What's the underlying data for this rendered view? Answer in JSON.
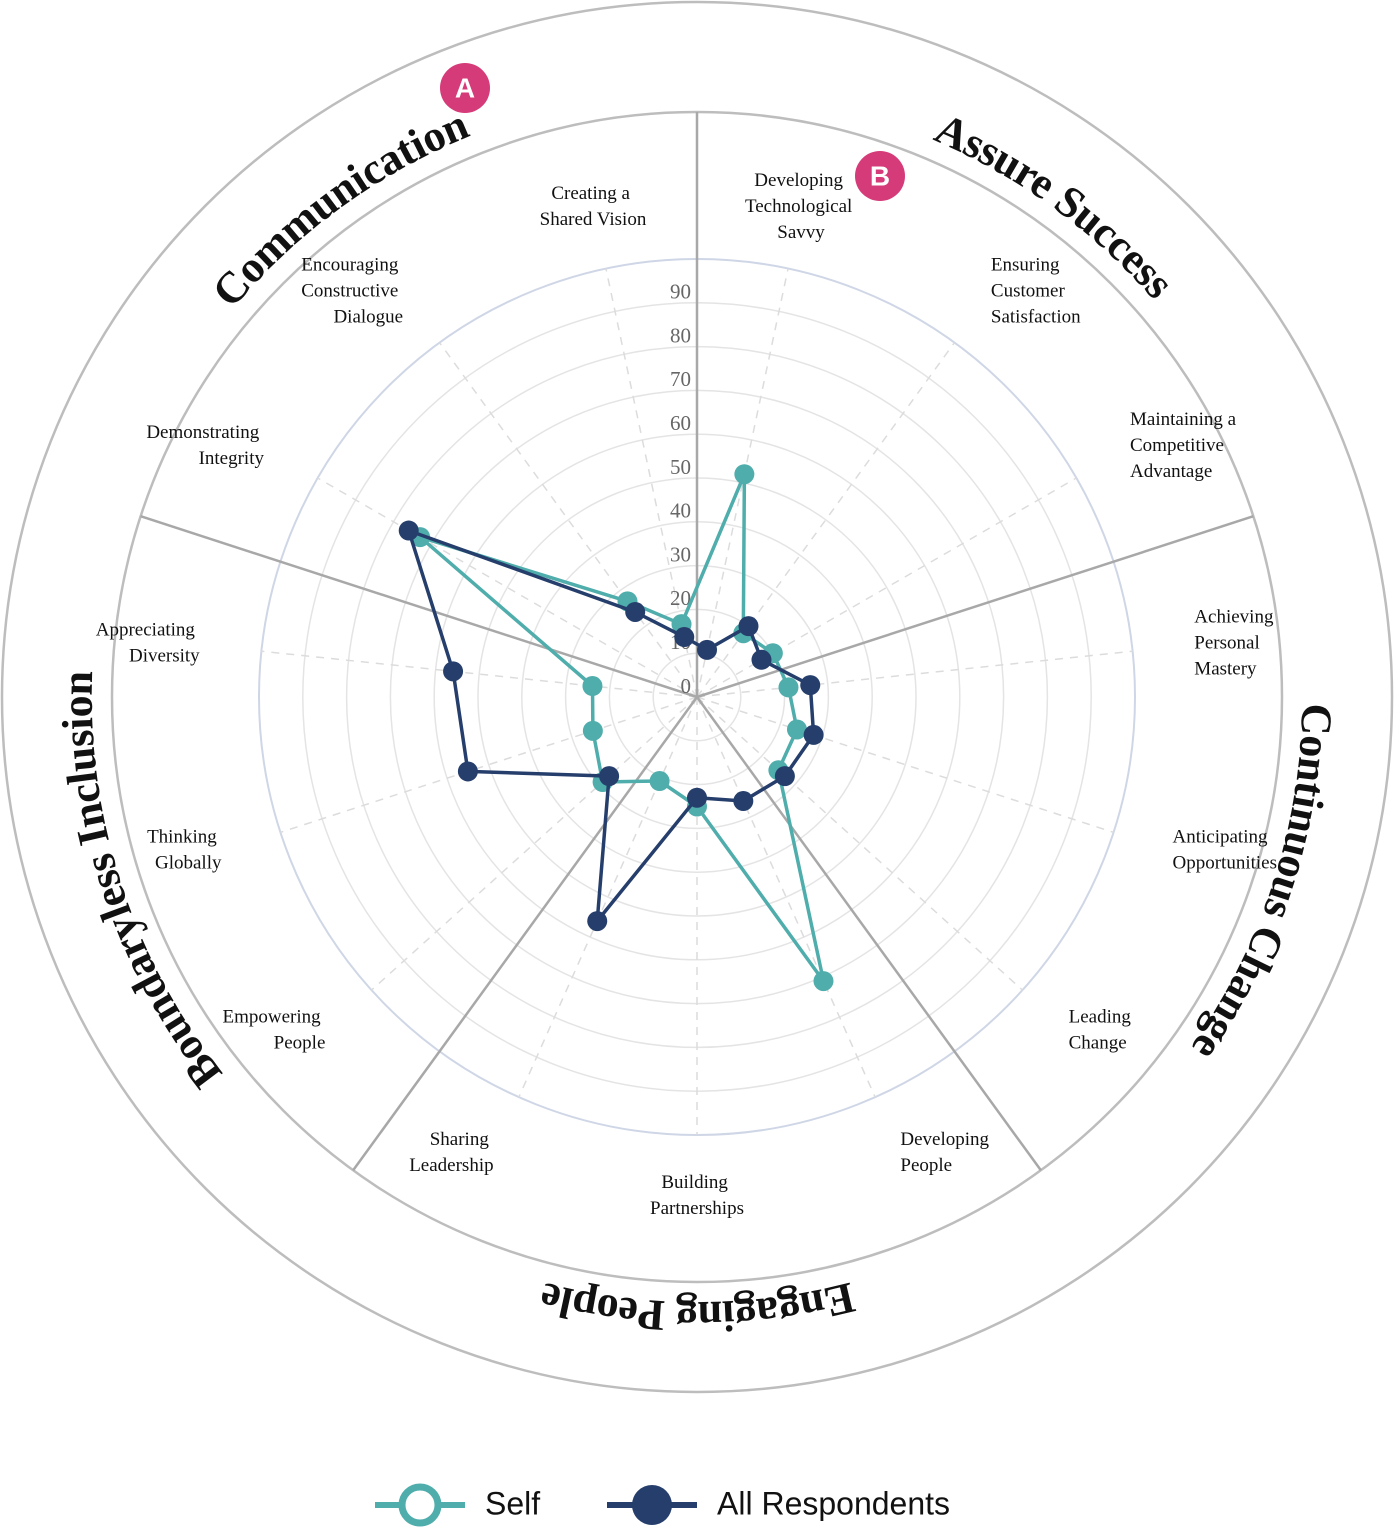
{
  "chart_data": {
    "type": "radar",
    "categories": [
      "Developing Technological Savvy",
      "Ensuring Customer Satisfaction",
      "Maintaining a Competitive Advantage",
      "Achieving Personal Mastery",
      "Anticipating Opportunities",
      "Leading Change",
      "Developing People",
      "Building Partnerships",
      "Sharing Leadership",
      "Empowering People",
      "Thinking Globally",
      "Appreciating Diversity",
      "Demonstrating Integrity",
      "Encouraging Constructive Dialogue",
      "Creating a Shared Vision"
    ],
    "groups": [
      "Assure Success",
      "Continuous Change",
      "Engaging People",
      "Boundaryless Inclusion",
      "Communication"
    ],
    "series": [
      {
        "name": "Self",
        "color": "#4fadac",
        "values": [
          52,
          18,
          20,
          21,
          24,
          25,
          71,
          25,
          21,
          29,
          25,
          24,
          73,
          27,
          17
        ]
      },
      {
        "name": "All Respondents",
        "color": "#253e6b",
        "values": [
          11,
          20,
          17,
          26,
          28,
          27,
          26,
          23,
          56,
          27,
          55,
          56,
          76,
          24,
          14
        ]
      }
    ],
    "ylim": [
      0,
      100
    ],
    "yticks": [
      0,
      10,
      20,
      30,
      40,
      50,
      60,
      70,
      80,
      90
    ],
    "grid": true,
    "legend": "bottom",
    "annotations": [
      "A",
      "B"
    ]
  }
}
